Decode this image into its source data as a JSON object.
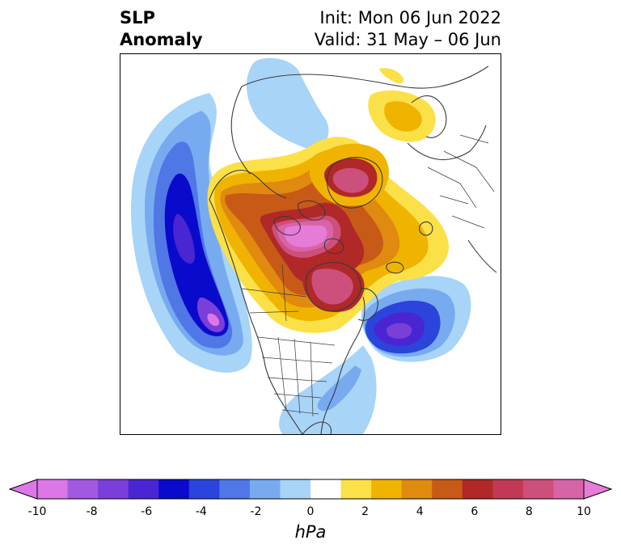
{
  "title": {
    "left_line1": "SLP",
    "left_line2": "Anomaly",
    "right_line1": "Init: Mon 06 Jun 2022",
    "right_line2": "Valid: 31 May – 06 Jun"
  },
  "colorbar": {
    "units": "hPa",
    "ticks": [
      "-10",
      "-8",
      "-6",
      "-4",
      "-2",
      "0",
      "2",
      "4",
      "6",
      "8",
      "10"
    ],
    "colors": [
      "#dd77e8",
      "#a259e0",
      "#7a3fd8",
      "#4a25d2",
      "#0a0acc",
      "#2a44dc",
      "#4f77e6",
      "#78aaf0",
      "#a8d4f8",
      "#ffffff",
      "#fbe048",
      "#f0b400",
      "#e08a10",
      "#c85a18",
      "#b02828",
      "#c03a55",
      "#cc4f7c",
      "#d864a8",
      "#e67bd8"
    ]
  },
  "map": {
    "region": "Northern Hemisphere polar stereographic",
    "negative_colors": {
      "light": "#a8d4f8",
      "med": "#78aaf0",
      "blue": "#4f77e6",
      "deep": "#0a0acc",
      "purple": "#7a3fd8",
      "magenta": "#dd77e8"
    },
    "positive_colors": {
      "yellow": "#fbe048",
      "gold": "#f0b400",
      "orange": "#e08a10",
      "rust": "#c85a18",
      "red": "#b02828",
      "rose": "#cc4f7c",
      "pink": "#e67bd8"
    },
    "coastline_color": "#3a3a3a"
  }
}
